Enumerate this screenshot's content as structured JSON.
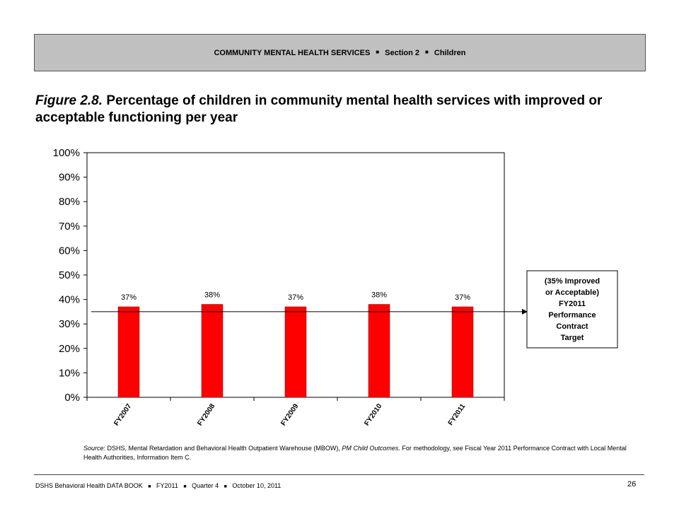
{
  "header": {
    "section_title": "COMMUNITY MENTAL HEALTH SERVICES",
    "section": "Section 2",
    "population": "Children",
    "separator": "■"
  },
  "figure": {
    "label": "Figure 2.8.",
    "title": "Percentage of children in community mental health services with improved or acceptable functioning per year"
  },
  "chart_data": {
    "type": "bar",
    "categories": [
      "FY2007",
      "FY2008",
      "FY2009",
      "FY2010",
      "FY2011"
    ],
    "values": [
      37,
      38,
      37,
      38,
      37
    ],
    "data_labels": [
      "37%",
      "38%",
      "37%",
      "38%",
      "37%"
    ],
    "y_ticks": [
      "0%",
      "10%",
      "20%",
      "30%",
      "40%",
      "50%",
      "60%",
      "70%",
      "80%",
      "90%",
      "100%"
    ],
    "ylim": [
      0,
      100
    ],
    "bar_color": "#ff0000",
    "grid": false,
    "target": {
      "value": 35,
      "label_lines": [
        "(35% Improved",
        "or Acceptable)",
        "FY2011",
        "Performance",
        "Contract",
        "Target"
      ]
    }
  },
  "source": {
    "prefix": "Source",
    "text_1": ": DSHS, Mental Retardation and Behavioral Health Outpatient Warehouse (MBOW), ",
    "italic": "PM Child Outcomes",
    "text_2": ". For methodology, see Fiscal Year 2011 Performance Contract with Local Mental Health Authorities, Information Item C."
  },
  "footer": {
    "book": "DSHS Behavioral Health DATA BOOK",
    "fiscal_year": "FY2011",
    "quarter": "Quarter 4",
    "date": "October 10, 2011",
    "separator": "■",
    "page_number": "26"
  }
}
